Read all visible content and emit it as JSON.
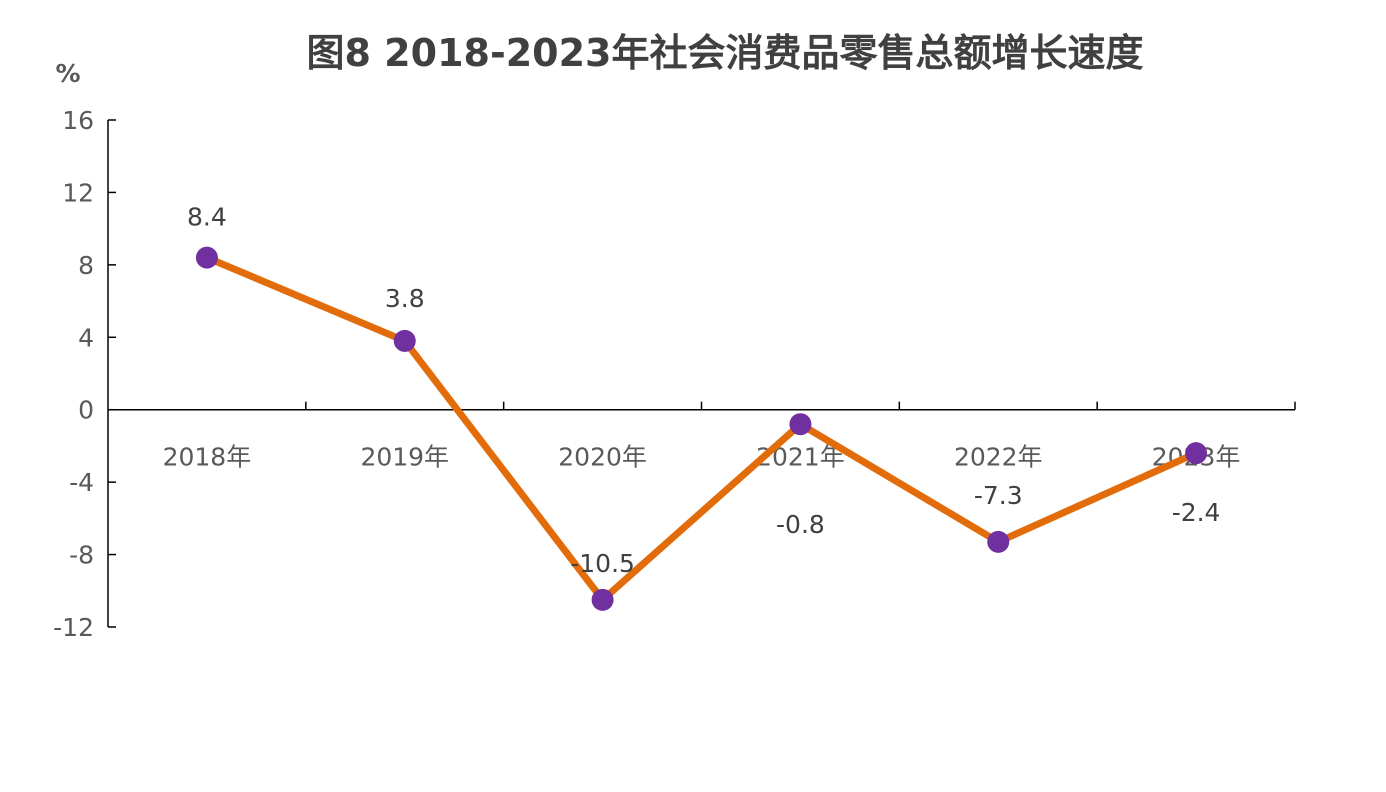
{
  "chart_data": {
    "type": "line",
    "title": "图8 2018-2023年社会消费品零售总额增长速度",
    "ylabel": "%",
    "xlabel": "",
    "categories": [
      "2018年",
      "2019年",
      "2020年",
      "2021年",
      "2022年",
      "2023年"
    ],
    "series": [
      {
        "name": "社会消费品零售总额增长速度",
        "values": [
          8.4,
          3.8,
          -10.5,
          -0.8,
          -7.3,
          -2.4
        ]
      }
    ],
    "ylim": [
      -12,
      16
    ],
    "yticks": [
      16,
      12,
      8,
      4,
      0,
      -4,
      -8,
      -12
    ],
    "grid": false,
    "legend": "none",
    "colors": {
      "line": "#E36C0A",
      "marker": "#7030A0"
    }
  }
}
